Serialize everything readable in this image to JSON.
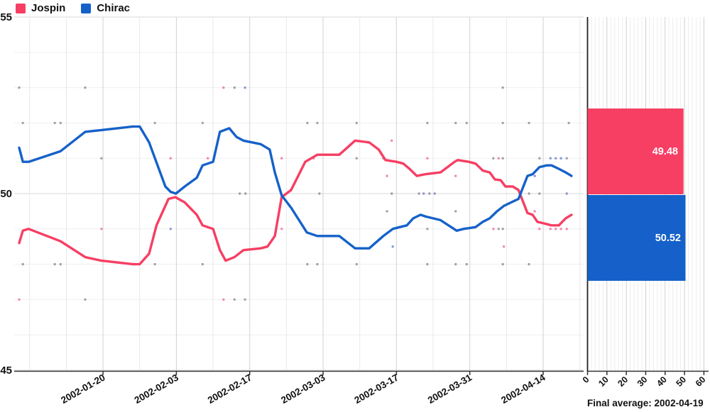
{
  "chart_data": {
    "type": "line",
    "title": "",
    "day_zero": "2002-01-04",
    "main": {
      "y_axis": {
        "ticks": [
          45,
          50,
          55
        ],
        "range": [
          45,
          55
        ],
        "minor_grid_step": 1
      },
      "x_axis": {
        "tick_labels": [
          "2002-01-20",
          "2002-02-03",
          "2002-02-17",
          "2002-03-03",
          "2002-03-17",
          "2002-03-31",
          "2002-04-14"
        ],
        "tick_days": [
          16,
          30,
          44,
          58,
          72,
          86,
          100
        ],
        "minor_grid_step_days": 7,
        "range_days": [
          0,
          107
        ]
      },
      "series": [
        {
          "name": "Jospin",
          "color": "#f73e63",
          "points": [
            [
              0,
              48.6
            ],
            [
              0.7,
              48.95
            ],
            [
              1.8,
              49.0
            ],
            [
              7.9,
              48.65
            ],
            [
              12.6,
              48.2
            ],
            [
              15.7,
              48.1
            ],
            [
              21.7,
              48.0
            ],
            [
              23,
              48.0
            ],
            [
              24.8,
              48.3
            ],
            [
              26.2,
              49.1
            ],
            [
              28.5,
              49.85
            ],
            [
              29.8,
              49.9
            ],
            [
              31.6,
              49.75
            ],
            [
              33.9,
              49.4
            ],
            [
              35,
              49.1
            ],
            [
              37,
              49.0
            ],
            [
              38.3,
              48.4
            ],
            [
              39.4,
              48.1
            ],
            [
              41.1,
              48.2
            ],
            [
              42.8,
              48.4
            ],
            [
              46.1,
              48.45
            ],
            [
              47.4,
              48.5
            ],
            [
              48.8,
              48.8
            ],
            [
              50.1,
              49.9
            ],
            [
              51.9,
              50.1
            ],
            [
              54.6,
              50.9
            ],
            [
              56.9,
              51.1
            ],
            [
              61.1,
              51.1
            ],
            [
              64.1,
              51.5
            ],
            [
              66.8,
              51.45
            ],
            [
              68.6,
              51.25
            ],
            [
              69.9,
              50.95
            ],
            [
              72,
              50.9
            ],
            [
              73.3,
              50.85
            ],
            [
              74.5,
              50.7
            ],
            [
              75.9,
              50.5
            ],
            [
              77.6,
              50.55
            ],
            [
              80.4,
              50.6
            ],
            [
              83.1,
              50.9
            ],
            [
              83.7,
              50.95
            ],
            [
              85.8,
              50.9
            ],
            [
              87.1,
              50.85
            ],
            [
              88.5,
              50.65
            ],
            [
              89.8,
              50.6
            ],
            [
              90.8,
              50.4
            ],
            [
              91.9,
              50.38
            ],
            [
              92.8,
              50.2
            ],
            [
              94.2,
              50.2
            ],
            [
              95.3,
              50.1
            ],
            [
              97,
              49.45
            ],
            [
              98,
              49.4
            ],
            [
              98.9,
              49.2
            ],
            [
              100.3,
              49.15
            ],
            [
              101.6,
              49.1
            ],
            [
              103,
              49.1
            ],
            [
              104.3,
              49.3
            ],
            [
              105.4,
              49.4
            ]
          ]
        },
        {
          "name": "Chirac",
          "color": "#1561c9",
          "points": [
            [
              0,
              51.3
            ],
            [
              0.7,
              50.9
            ],
            [
              1.8,
              50.9
            ],
            [
              7.9,
              51.2
            ],
            [
              12.6,
              51.75
            ],
            [
              15.7,
              51.8
            ],
            [
              21.7,
              51.9
            ],
            [
              23,
              51.9
            ],
            [
              24.8,
              51.45
            ],
            [
              27.9,
              50.2
            ],
            [
              28.9,
              50.05
            ],
            [
              29.9,
              50.0
            ],
            [
              31.6,
              50.2
            ],
            [
              33.9,
              50.45
            ],
            [
              35,
              50.8
            ],
            [
              37,
              50.9
            ],
            [
              38.3,
              51.75
            ],
            [
              40.1,
              51.85
            ],
            [
              41.5,
              51.6
            ],
            [
              42.8,
              51.5
            ],
            [
              46.1,
              51.4
            ],
            [
              47.8,
              51.25
            ],
            [
              48.8,
              50.6
            ],
            [
              50.1,
              49.95
            ],
            [
              51.9,
              49.6
            ],
            [
              54.9,
              48.9
            ],
            [
              56.9,
              48.8
            ],
            [
              61.1,
              48.8
            ],
            [
              64.1,
              48.45
            ],
            [
              66.8,
              48.45
            ],
            [
              69.5,
              48.8
            ],
            [
              71.3,
              49.0
            ],
            [
              72.6,
              49.05
            ],
            [
              74,
              49.1
            ],
            [
              75.2,
              49.3
            ],
            [
              76.6,
              49.4
            ],
            [
              77.6,
              49.35
            ],
            [
              80.4,
              49.25
            ],
            [
              83.5,
              48.95
            ],
            [
              84.8,
              49.0
            ],
            [
              87.1,
              49.05
            ],
            [
              88.5,
              49.2
            ],
            [
              89.8,
              49.3
            ],
            [
              91.2,
              49.5
            ],
            [
              92.5,
              49.65
            ],
            [
              93.9,
              49.75
            ],
            [
              95.3,
              49.85
            ],
            [
              97,
              50.5
            ],
            [
              98,
              50.55
            ],
            [
              99.3,
              50.75
            ],
            [
              100.7,
              50.8
            ],
            [
              101.6,
              50.8
            ],
            [
              103,
              50.7
            ],
            [
              104.3,
              50.6
            ],
            [
              105.4,
              50.5
            ]
          ]
        }
      ],
      "scatter_color_legend": {
        "0": "overlap-gray",
        "1": "jospin-pink",
        "2": "chirac-blue",
        "3": "overlap-violet"
      },
      "scatter_colors": [
        "#90909a",
        "#f0739c",
        "#6e8ad2",
        "#8d7cd0"
      ],
      "scatter": [
        [
          0,
          53,
          0
        ],
        [
          0,
          47,
          1
        ],
        [
          0.7,
          52,
          0
        ],
        [
          0.7,
          48,
          0
        ],
        [
          6.8,
          52,
          0
        ],
        [
          6.8,
          48,
          0
        ],
        [
          7.9,
          52,
          0
        ],
        [
          7.9,
          48,
          0
        ],
        [
          12.6,
          53,
          0
        ],
        [
          12.6,
          47,
          0
        ],
        [
          15.7,
          51,
          0
        ],
        [
          15.7,
          49,
          1
        ],
        [
          25.9,
          52,
          0
        ],
        [
          25.9,
          48,
          0
        ],
        [
          28.9,
          51,
          1
        ],
        [
          28.9,
          49,
          2
        ],
        [
          35,
          52,
          0
        ],
        [
          35,
          48,
          0
        ],
        [
          36,
          51,
          1
        ],
        [
          39,
          53,
          1
        ],
        [
          39,
          47,
          1
        ],
        [
          41.1,
          53,
          0
        ],
        [
          41.1,
          47,
          0
        ],
        [
          42.1,
          50,
          0
        ],
        [
          43.2,
          50,
          0
        ],
        [
          43.1,
          53,
          2
        ],
        [
          43.1,
          47,
          0
        ],
        [
          50.1,
          51,
          1
        ],
        [
          50.1,
          49,
          1
        ],
        [
          55,
          52,
          0
        ],
        [
          55,
          48,
          0
        ],
        [
          56.2,
          51,
          1
        ],
        [
          56.9,
          52,
          0
        ],
        [
          56.9,
          48,
          0
        ],
        [
          57.3,
          50,
          0
        ],
        [
          64.4,
          52,
          0
        ],
        [
          64.4,
          51,
          0
        ],
        [
          64.4,
          48,
          0
        ],
        [
          69.5,
          51,
          0
        ],
        [
          70.2,
          50.5,
          1
        ],
        [
          70.2,
          49.5,
          0
        ],
        [
          71.1,
          51.5,
          1
        ],
        [
          71.1,
          50,
          0
        ],
        [
          71.3,
          48.5,
          2
        ],
        [
          76.3,
          50,
          0
        ],
        [
          77.2,
          50,
          3
        ],
        [
          77.9,
          52,
          0
        ],
        [
          77.9,
          51,
          1
        ],
        [
          77.9,
          49,
          0
        ],
        [
          77.9,
          48,
          0
        ],
        [
          78.3,
          50,
          0
        ],
        [
          79.3,
          50,
          3
        ],
        [
          83.3,
          52,
          0
        ],
        [
          83.3,
          50.5,
          1
        ],
        [
          83.3,
          49.5,
          0
        ],
        [
          83.3,
          48,
          0
        ],
        [
          85.4,
          52,
          0
        ],
        [
          85.4,
          48,
          0
        ],
        [
          90.5,
          51,
          0
        ],
        [
          90.5,
          49,
          1
        ],
        [
          91.5,
          51,
          1
        ],
        [
          91.5,
          49,
          0
        ],
        [
          92.3,
          53,
          0
        ],
        [
          92.3,
          52,
          0
        ],
        [
          92.3,
          51,
          0
        ],
        [
          92.3,
          49,
          0
        ],
        [
          92.3,
          48,
          0
        ],
        [
          92.5,
          48.5,
          1
        ],
        [
          97.3,
          52,
          0
        ],
        [
          97.3,
          50,
          0
        ],
        [
          97.3,
          48,
          0
        ],
        [
          98.4,
          50.5,
          3
        ],
        [
          98.4,
          49.5,
          1
        ],
        [
          99.3,
          51,
          0
        ],
        [
          99.3,
          50,
          0
        ],
        [
          99.3,
          49,
          1
        ],
        [
          101.4,
          51,
          2
        ],
        [
          101.4,
          49,
          1
        ],
        [
          102.4,
          51,
          3
        ],
        [
          102.4,
          49,
          1
        ],
        [
          103.4,
          51,
          2
        ],
        [
          103.4,
          49,
          1
        ],
        [
          104.5,
          51,
          0
        ],
        [
          104.5,
          49,
          1
        ],
        [
          104.5,
          50,
          3
        ],
        [
          104.9,
          52,
          0
        ]
      ]
    },
    "side": {
      "type": "bar-horizontal",
      "x_axis": {
        "ticks": [
          0,
          10,
          20,
          30,
          40,
          50,
          60
        ],
        "range": [
          0,
          60
        ],
        "minor_grid_step": 2
      },
      "bars": [
        {
          "name": "Jospin",
          "value": 49.48,
          "color": "#f73e63"
        },
        {
          "name": "Chirac",
          "value": 50.52,
          "color": "#1561c9"
        }
      ],
      "footer": "Final average: 2002-04-19"
    }
  }
}
